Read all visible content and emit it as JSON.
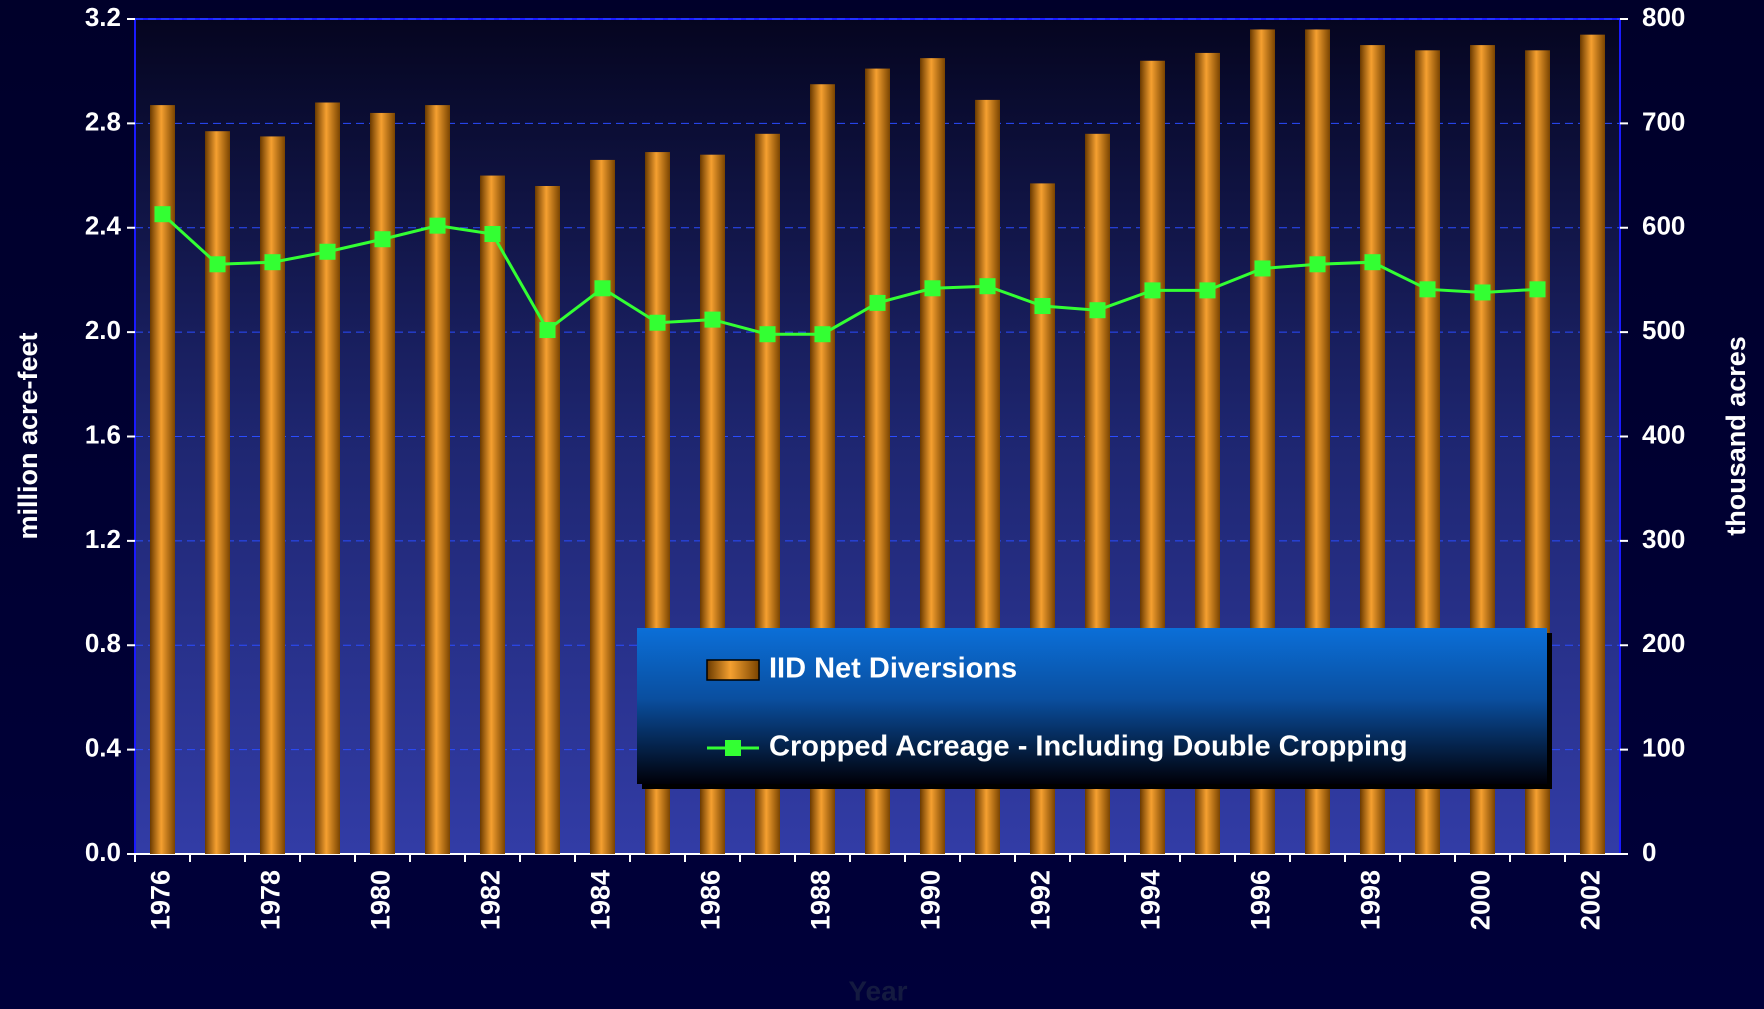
{
  "chart_data": {
    "type": "bar_line",
    "x_label": "Year",
    "y_label": "million acre-feet",
    "y2_label": "thousand acres",
    "categories": [
      "1976",
      null,
      "1978",
      null,
      "1980",
      null,
      "1982",
      null,
      "1984",
      null,
      "1986",
      null,
      "1988",
      null,
      "1990",
      null,
      "1992",
      null,
      "1994",
      null,
      "1996",
      null,
      "1998",
      null,
      "2000",
      null,
      "2002"
    ],
    "series": [
      {
        "name": "IID Net Diversions",
        "type": "bar",
        "color": "#f5a030",
        "values": [
          2.87,
          2.77,
          2.75,
          2.88,
          2.84,
          2.87,
          2.6,
          2.56,
          2.66,
          2.69,
          2.68,
          2.76,
          2.95,
          3.01,
          3.05,
          2.89,
          2.57,
          2.76,
          3.04,
          3.07,
          3.16,
          3.16,
          3.1,
          3.08,
          3.1,
          3.08,
          3.14
        ]
      },
      {
        "name": "Cropped Acreage - Including Double Cropping",
        "type": "line",
        "axis": "y2",
        "color": "#33ff33",
        "values": [
          613,
          565,
          567,
          577,
          589,
          602,
          594,
          502,
          542,
          509,
          512,
          498,
          498,
          528,
          542,
          544,
          525,
          521,
          540,
          540,
          561,
          565,
          567,
          541,
          538,
          541,
          null
        ]
      }
    ],
    "ylim": [
      0,
      3.2
    ],
    "yticks": [
      {
        "value": 0,
        "label": "0.0"
      },
      0.4,
      0.8,
      1.2,
      1.6,
      {
        "value": 2,
        "label": "2.0"
      },
      2.4,
      2.8,
      3.2
    ],
    "y2lim": [
      0,
      800
    ],
    "y2ticks": [
      0,
      100,
      200,
      300,
      400,
      500,
      600,
      700,
      800
    ],
    "grid": true,
    "legend": "bottom-right"
  }
}
